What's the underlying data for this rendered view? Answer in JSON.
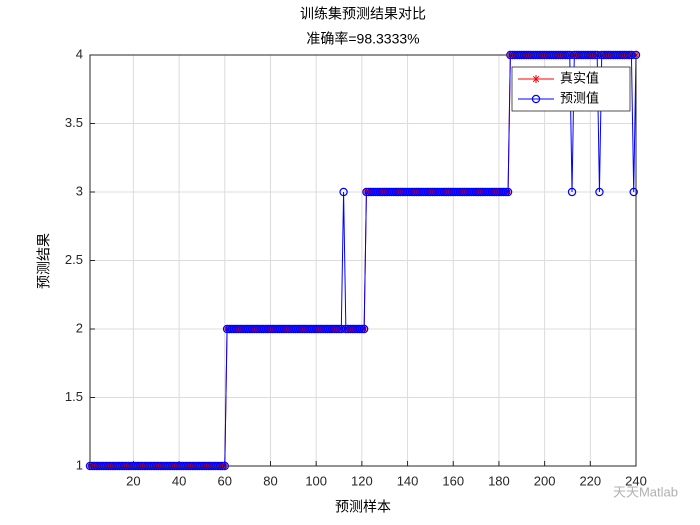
{
  "chart_data": {
    "type": "line",
    "title": "训练集预测结果对比",
    "subtitle": "准确率=98.3333%",
    "x_label": "预测样本",
    "y_label": "预测结果",
    "watermark": "天天Matlab",
    "x": [
      1,
      2,
      3,
      4,
      5,
      6,
      7,
      8,
      9,
      10,
      11,
      12,
      13,
      14,
      15,
      16,
      17,
      18,
      19,
      20,
      21,
      22,
      23,
      24,
      25,
      26,
      27,
      28,
      29,
      30,
      31,
      32,
      33,
      34,
      35,
      36,
      37,
      38,
      39,
      40,
      41,
      42,
      43,
      44,
      45,
      46,
      47,
      48,
      49,
      50,
      51,
      52,
      53,
      54,
      55,
      56,
      57,
      58,
      59,
      60,
      61,
      62,
      63,
      64,
      65,
      66,
      67,
      68,
      69,
      70,
      71,
      72,
      73,
      74,
      75,
      76,
      77,
      78,
      79,
      80,
      81,
      82,
      83,
      84,
      85,
      86,
      87,
      88,
      89,
      90,
      91,
      92,
      93,
      94,
      95,
      96,
      97,
      98,
      99,
      100,
      101,
      102,
      103,
      104,
      105,
      106,
      107,
      108,
      109,
      110,
      111,
      112,
      113,
      114,
      115,
      116,
      117,
      118,
      119,
      120,
      121,
      122,
      123,
      124,
      125,
      126,
      127,
      128,
      129,
      130,
      131,
      132,
      133,
      134,
      135,
      136,
      137,
      138,
      139,
      140,
      141,
      142,
      143,
      144,
      145,
      146,
      147,
      148,
      149,
      150,
      151,
      152,
      153,
      154,
      155,
      156,
      157,
      158,
      159,
      160,
      161,
      162,
      163,
      164,
      165,
      166,
      167,
      168,
      169,
      170,
      171,
      172,
      173,
      174,
      175,
      176,
      177,
      178,
      179,
      180,
      181,
      182,
      183,
      184,
      185,
      186,
      187,
      188,
      189,
      190,
      191,
      192,
      193,
      194,
      195,
      196,
      197,
      198,
      199,
      200,
      201,
      202,
      203,
      204,
      205,
      206,
      207,
      208,
      209,
      210,
      211,
      212,
      213,
      214,
      215,
      216,
      217,
      218,
      219,
      220,
      221,
      222,
      223,
      224,
      225,
      226,
      227,
      228,
      229,
      230,
      231,
      232,
      233,
      234,
      235,
      236,
      237,
      238,
      239,
      240
    ],
    "series": [
      {
        "name": "真实值",
        "color": "#ff0000",
        "marker": "star",
        "values": [
          1,
          1,
          1,
          1,
          1,
          1,
          1,
          1,
          1,
          1,
          1,
          1,
          1,
          1,
          1,
          1,
          1,
          1,
          1,
          1,
          1,
          1,
          1,
          1,
          1,
          1,
          1,
          1,
          1,
          1,
          1,
          1,
          1,
          1,
          1,
          1,
          1,
          1,
          1,
          1,
          1,
          1,
          1,
          1,
          1,
          1,
          1,
          1,
          1,
          1,
          1,
          1,
          1,
          1,
          1,
          1,
          1,
          1,
          1,
          1,
          2,
          2,
          2,
          2,
          2,
          2,
          2,
          2,
          2,
          2,
          2,
          2,
          2,
          2,
          2,
          2,
          2,
          2,
          2,
          2,
          2,
          2,
          2,
          2,
          2,
          2,
          2,
          2,
          2,
          2,
          2,
          2,
          2,
          2,
          2,
          2,
          2,
          2,
          2,
          2,
          2,
          2,
          2,
          2,
          2,
          2,
          2,
          2,
          2,
          2,
          2,
          2,
          2,
          2,
          2,
          2,
          2,
          2,
          2,
          2,
          2,
          3,
          3,
          3,
          3,
          3,
          3,
          3,
          3,
          3,
          3,
          3,
          3,
          3,
          3,
          3,
          3,
          3,
          3,
          3,
          3,
          3,
          3,
          3,
          3,
          3,
          3,
          3,
          3,
          3,
          3,
          3,
          3,
          3,
          3,
          3,
          3,
          3,
          3,
          3,
          3,
          3,
          3,
          3,
          3,
          3,
          3,
          3,
          3,
          3,
          3,
          3,
          3,
          3,
          3,
          3,
          3,
          3,
          3,
          3,
          3,
          3,
          3,
          3,
          4,
          4,
          4,
          4,
          4,
          4,
          4,
          4,
          4,
          4,
          4,
          4,
          4,
          4,
          4,
          4,
          4,
          4,
          4,
          4,
          4,
          4,
          4,
          4,
          4,
          4,
          4,
          4,
          4,
          4,
          4,
          4,
          4,
          4,
          4,
          4,
          4,
          4,
          4,
          4,
          4,
          4,
          4,
          4,
          4,
          4,
          4,
          4,
          4,
          4,
          4,
          4,
          4,
          4,
          4,
          4
        ]
      },
      {
        "name": "预测值",
        "color": "#0000ff",
        "marker": "circle",
        "values": [
          1,
          1,
          1,
          1,
          1,
          1,
          1,
          1,
          1,
          1,
          1,
          1,
          1,
          1,
          1,
          1,
          1,
          1,
          1,
          1,
          1,
          1,
          1,
          1,
          1,
          1,
          1,
          1,
          1,
          1,
          1,
          1,
          1,
          1,
          1,
          1,
          1,
          1,
          1,
          1,
          1,
          1,
          1,
          1,
          1,
          1,
          1,
          1,
          1,
          1,
          1,
          1,
          1,
          1,
          1,
          1,
          1,
          1,
          1,
          1,
          2,
          2,
          2,
          2,
          2,
          2,
          2,
          2,
          2,
          2,
          2,
          2,
          2,
          2,
          2,
          2,
          2,
          2,
          2,
          2,
          2,
          2,
          2,
          2,
          2,
          2,
          2,
          2,
          2,
          2,
          2,
          2,
          2,
          2,
          2,
          2,
          2,
          2,
          2,
          2,
          2,
          2,
          2,
          2,
          2,
          2,
          2,
          2,
          2,
          2,
          2,
          3,
          2,
          2,
          2,
          2,
          2,
          2,
          2,
          2,
          2,
          3,
          3,
          3,
          3,
          3,
          3,
          3,
          3,
          3,
          3,
          3,
          3,
          3,
          3,
          3,
          3,
          3,
          3,
          3,
          3,
          3,
          3,
          3,
          3,
          3,
          3,
          3,
          3,
          3,
          3,
          3,
          3,
          3,
          3,
          3,
          3,
          3,
          3,
          3,
          3,
          3,
          3,
          3,
          3,
          3,
          3,
          3,
          3,
          3,
          3,
          3,
          3,
          3,
          3,
          3,
          3,
          3,
          3,
          3,
          3,
          3,
          3,
          3,
          4,
          4,
          4,
          4,
          4,
          4,
          4,
          4,
          4,
          4,
          4,
          4,
          4,
          4,
          4,
          4,
          4,
          4,
          4,
          4,
          4,
          4,
          4,
          4,
          4,
          4,
          4,
          3,
          4,
          4,
          4,
          4,
          4,
          4,
          4,
          4,
          4,
          4,
          4,
          3,
          4,
          4,
          4,
          4,
          4,
          4,
          4,
          4,
          4,
          4,
          4,
          4,
          4,
          4,
          3,
          4
        ]
      }
    ],
    "xlim": [
      1,
      240
    ],
    "xticks": [
      20,
      40,
      60,
      80,
      100,
      120,
      140,
      160,
      180,
      200,
      220,
      240
    ],
    "ylim": [
      1,
      4
    ],
    "yticks": [
      1,
      1.5,
      2,
      2.5,
      3,
      3.5,
      4
    ],
    "grid": true,
    "legend": "northeast"
  }
}
